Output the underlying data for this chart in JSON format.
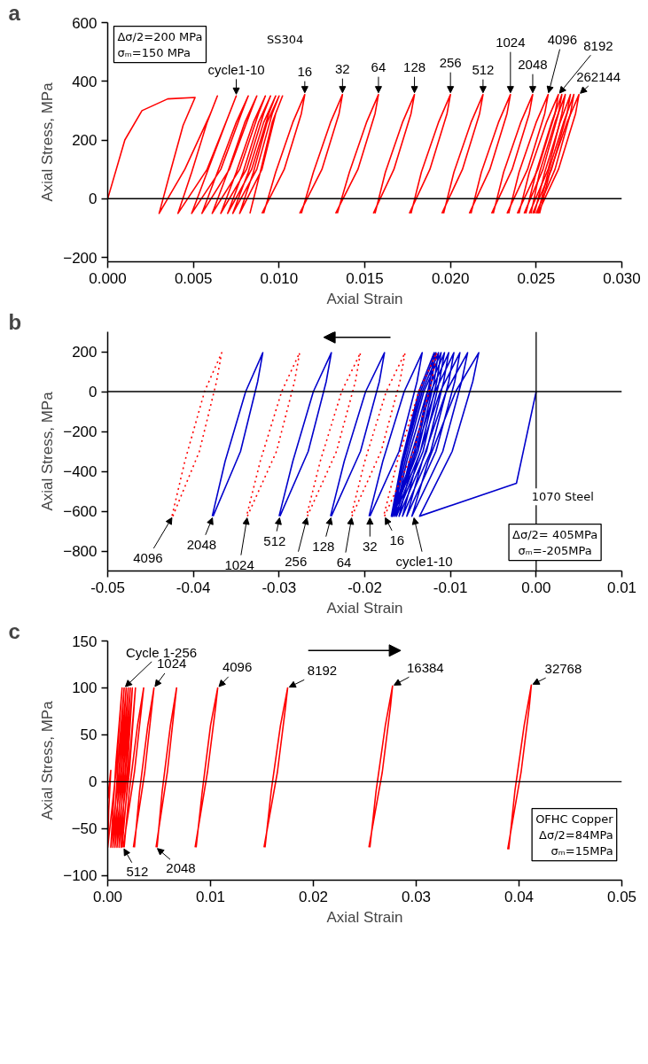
{
  "chart_data": [
    {
      "type": "line",
      "title": "a",
      "xlabel": "Axial Strain",
      "ylabel": "Axial Stress, MPa",
      "xlim": [
        0,
        0.03
      ],
      "ylim": [
        -215,
        600
      ],
      "xticks": [
        {
          "value": 0,
          "label": "0.000"
        },
        {
          "value": 0.005,
          "label": "0.005"
        },
        {
          "value": 0.01,
          "label": "0.010"
        },
        {
          "value": 0.015,
          "label": "0.015"
        },
        {
          "value": 0.02,
          "label": "0.020"
        },
        {
          "value": 0.025,
          "label": "0.025"
        },
        {
          "value": 0.03,
          "label": "0.030"
        }
      ],
      "yticks": [
        -200,
        0,
        200,
        400,
        600
      ],
      "ref_lines": [
        {
          "axis": "y",
          "value": 0,
          "color": "#000000"
        }
      ],
      "series": [
        {
          "color": "#ff0000",
          "line_style": "solid",
          "x": [
            0,
            0.001,
            0.002,
            0.0035,
            0.0051,
            0.0044,
            0.0036,
            0.003,
            0.0045,
            0.006,
            0.0064,
            0.0058,
            0.0049,
            0.0041,
            0.0058,
            0.0071,
            0.0075,
            0.0069,
            0.0058,
            0.0049,
            0.0066,
            0.0078,
            0.0082,
            0.0075,
            0.0064,
            0.0055,
            0.0071,
            0.0083,
            0.0087,
            0.008,
            0.007,
            0.0061,
            0.0077,
            0.0088,
            0.0092,
            0.0085,
            0.0075,
            0.0066,
            0.0081,
            0.0091,
            0.0095,
            0.0088,
            0.0079,
            0.007,
            0.0084,
            0.0094,
            0.0098,
            0.0091,
            0.0082,
            0.0073,
            0.0087,
            0.0096,
            0.01,
            0.0093,
            0.0085,
            0.0077,
            0.009,
            0.0098,
            0.0102,
            0.0096,
            0.0089,
            0.0083
          ],
          "values": [
            0,
            200,
            300,
            340,
            345,
            250,
            80,
            -50,
            100,
            290,
            350,
            260,
            90,
            -50,
            100,
            290,
            350,
            260,
            90,
            -50,
            100,
            290,
            350,
            260,
            90,
            -50,
            100,
            290,
            350,
            260,
            90,
            -50,
            100,
            290,
            350,
            260,
            90,
            -50,
            100,
            290,
            350,
            260,
            90,
            -50,
            100,
            290,
            350,
            260,
            90,
            -50,
            100,
            290,
            350,
            260,
            90,
            -50,
            100,
            290,
            350,
            260,
            90,
            -50
          ]
        },
        {
          "color": "#ff0000",
          "line_style": "solid",
          "x": [
            0.009,
            0.0103,
            0.0113,
            0.0115,
            0.0108,
            0.0098,
            0.0091
          ],
          "values": [
            -50,
            100,
            290,
            355,
            260,
            90,
            -50
          ]
        },
        {
          "color": "#ff0000",
          "line_style": "solid",
          "x": [
            0.0112,
            0.0125,
            0.0135,
            0.0137,
            0.013,
            0.012,
            0.0113
          ],
          "values": [
            -50,
            100,
            290,
            355,
            260,
            90,
            -50
          ]
        },
        {
          "color": "#ff0000",
          "line_style": "solid",
          "x": [
            0.0133,
            0.0146,
            0.0156,
            0.0158,
            0.0151,
            0.0141,
            0.0134
          ],
          "values": [
            -50,
            100,
            290,
            355,
            260,
            90,
            -50
          ]
        },
        {
          "color": "#ff0000",
          "line_style": "solid",
          "x": [
            0.0155,
            0.0167,
            0.0177,
            0.0179,
            0.0172,
            0.0162,
            0.0156
          ],
          "values": [
            -50,
            100,
            290,
            355,
            260,
            90,
            -50
          ]
        },
        {
          "color": "#ff0000",
          "line_style": "solid",
          "x": [
            0.0176,
            0.0188,
            0.0198,
            0.02,
            0.0193,
            0.0183,
            0.0177
          ],
          "values": [
            -50,
            100,
            290,
            355,
            260,
            90,
            -50
          ]
        },
        {
          "color": "#ff0000",
          "line_style": "solid",
          "x": [
            0.0195,
            0.0207,
            0.0217,
            0.0219,
            0.0212,
            0.0202,
            0.0196
          ],
          "values": [
            -50,
            100,
            290,
            355,
            260,
            90,
            -50
          ]
        },
        {
          "color": "#ff0000",
          "line_style": "solid",
          "x": [
            0.0211,
            0.0223,
            0.0233,
            0.0235,
            0.0228,
            0.0218,
            0.0212
          ],
          "values": [
            -50,
            100,
            290,
            355,
            260,
            90,
            -50
          ]
        },
        {
          "color": "#ff0000",
          "line_style": "solid",
          "x": [
            0.0224,
            0.0236,
            0.0246,
            0.0248,
            0.0241,
            0.0231,
            0.0225
          ],
          "values": [
            -50,
            100,
            290,
            355,
            260,
            90,
            -50
          ]
        },
        {
          "color": "#ff0000",
          "line_style": "solid",
          "x": [
            0.0233,
            0.0245,
            0.0255,
            0.0257,
            0.025,
            0.024,
            0.0234
          ],
          "values": [
            -50,
            100,
            290,
            355,
            260,
            90,
            -50
          ]
        },
        {
          "color": "#ff0000",
          "line_style": "solid",
          "x": [
            0.0239,
            0.0251,
            0.0261,
            0.0263,
            0.0256,
            0.0246,
            0.024
          ],
          "values": [
            -50,
            100,
            290,
            355,
            260,
            90,
            -50
          ]
        },
        {
          "color": "#ff0000",
          "line_style": "solid",
          "x": [
            0.0243,
            0.0254,
            0.0263,
            0.0265,
            0.0259,
            0.025,
            0.0244
          ],
          "values": [
            -50,
            100,
            290,
            355,
            260,
            90,
            -50
          ]
        },
        {
          "color": "#ff0000",
          "line_style": "solid",
          "x": [
            0.0246,
            0.0257,
            0.0265,
            0.0267,
            0.0261,
            0.0252,
            0.0247
          ],
          "values": [
            -50,
            100,
            290,
            355,
            260,
            90,
            -50
          ]
        },
        {
          "color": "#ff0000",
          "line_style": "solid",
          "x": [
            0.0248,
            0.0259,
            0.0268,
            0.027,
            0.0264,
            0.0255,
            0.0249
          ],
          "values": [
            -50,
            100,
            290,
            355,
            260,
            90,
            -50
          ]
        },
        {
          "color": "#ff0000",
          "line_style": "solid",
          "x": [
            0.025,
            0.0261,
            0.027,
            0.0272,
            0.0266,
            0.0257,
            0.0251
          ],
          "values": [
            -50,
            100,
            290,
            355,
            260,
            90,
            -50
          ]
        },
        {
          "color": "#ff0000",
          "line_style": "solid",
          "x": [
            0.0251,
            0.0263,
            0.0273,
            0.0275,
            0.0268,
            0.0258,
            0.0252
          ],
          "values": [
            -50,
            100,
            290,
            355,
            260,
            90,
            -50
          ]
        }
      ],
      "annotations": [
        {
          "text": "cycle1-10",
          "x": 0.0075,
          "y": 350
        },
        {
          "text": "16",
          "x": 0.0115,
          "y": 355
        },
        {
          "text": "32",
          "x": 0.0137,
          "y": 355
        },
        {
          "text": "64",
          "x": 0.0158,
          "y": 355
        },
        {
          "text": "128",
          "x": 0.0179,
          "y": 355
        },
        {
          "text": "256",
          "x": 0.02,
          "y": 355
        },
        {
          "text": "512",
          "x": 0.0219,
          "y": 355
        },
        {
          "text": "1024",
          "x": 0.0235,
          "y": 355
        },
        {
          "text": "2048",
          "x": 0.0248,
          "y": 355
        },
        {
          "text": "4096",
          "x": 0.0257,
          "y": 355
        },
        {
          "text": "8192",
          "x": 0.0263,
          "y": 355
        },
        {
          "text": "262144",
          "x": 0.0275,
          "y": 355
        },
        "Δσ/2=200 MPa\nσₘ=150 MPa",
        "SS304"
      ]
    },
    {
      "type": "line",
      "title": "b",
      "xlabel": "Axial Strain",
      "ylabel": "Axial Stress, MPa",
      "xlim": [
        -0.05,
        0.01
      ],
      "ylim": [
        -900,
        300
      ],
      "xticks": [
        {
          "value": -0.05,
          "label": "-0.05"
        },
        {
          "value": -0.04,
          "label": "-0.04"
        },
        {
          "value": -0.03,
          "label": "-0.03"
        },
        {
          "value": -0.02,
          "label": "-0.02"
        },
        {
          "value": -0.01,
          "label": "-0.01"
        },
        {
          "value": 0,
          "label": "0.00"
        },
        {
          "value": 0.01,
          "label": "0.01"
        }
      ],
      "yticks": [
        -800,
        -600,
        -400,
        -200,
        0,
        200
      ],
      "ref_lines": [
        {
          "axis": "y",
          "value": 0,
          "color": "#000000"
        },
        {
          "axis": "x",
          "value": 0,
          "color": "#000000"
        }
      ],
      "series": [
        {
          "color": "#0000cc",
          "line_style": "solid",
          "x": [
            0,
            -0.0023,
            -0.0136,
            -0.0098,
            -0.0074,
            -0.0067,
            -0.0094,
            -0.0126,
            -0.0145,
            -0.0109,
            -0.0087,
            -0.008,
            -0.0105,
            -0.0133,
            -0.0151,
            -0.0117,
            -0.0095,
            -0.0089,
            -0.0112,
            -0.0139,
            -0.0156,
            -0.0123,
            -0.0102,
            -0.0096,
            -0.0118,
            -0.0144,
            -0.016,
            -0.0128,
            -0.0108,
            -0.0102,
            -0.0123,
            -0.0148,
            -0.0163,
            -0.0132,
            -0.0113,
            -0.0107,
            -0.0127,
            -0.0151,
            -0.0165,
            -0.0135,
            -0.0116,
            -0.0111,
            -0.0131,
            -0.0153,
            -0.0167,
            -0.0138,
            -0.0119,
            -0.0114,
            -0.0133,
            -0.0155,
            -0.0168,
            -0.014,
            -0.0122,
            -0.0117,
            -0.0135,
            -0.0156,
            -0.0169,
            -0.0142,
            -0.0124,
            -0.0119,
            -0.0137,
            -0.0157,
            -0.0169
          ],
          "values": [
            0,
            -460,
            -625,
            -300,
            50,
            195,
            0,
            -350,
            -625,
            -300,
            50,
            195,
            0,
            -350,
            -625,
            -300,
            50,
            195,
            0,
            -350,
            -625,
            -300,
            50,
            195,
            0,
            -350,
            -625,
            -300,
            50,
            195,
            0,
            -350,
            -625,
            -300,
            50,
            195,
            0,
            -350,
            -625,
            -300,
            50,
            195,
            0,
            -350,
            -625,
            -300,
            50,
            195,
            0,
            -350,
            -625,
            -300,
            50,
            195,
            0,
            -350,
            -625,
            -300,
            50,
            195,
            0,
            -350,
            -625
          ]
        },
        {
          "color": "#0000cc",
          "line_style": "solid",
          "x": [
            -0.0377,
            -0.0345,
            -0.0325,
            -0.0319,
            -0.0339,
            -0.0363,
            -0.0378
          ],
          "values": [
            -625,
            -300,
            50,
            195,
            0,
            -350,
            -625
          ]
        },
        {
          "color": "#0000cc",
          "line_style": "solid",
          "x": [
            -0.0299,
            -0.0266,
            -0.0245,
            -0.0239,
            -0.026,
            -0.0284,
            -0.03
          ],
          "values": [
            -625,
            -300,
            50,
            195,
            0,
            -350,
            -625
          ]
        },
        {
          "color": "#0000cc",
          "line_style": "solid",
          "x": [
            -0.0239,
            -0.0205,
            -0.0183,
            -0.0177,
            -0.0199,
            -0.0224,
            -0.024
          ],
          "values": [
            -625,
            -300,
            50,
            195,
            0,
            -350,
            -625
          ]
        },
        {
          "color": "#0000cc",
          "line_style": "solid",
          "x": [
            -0.0194,
            -0.016,
            -0.0139,
            -0.0133,
            -0.0154,
            -0.0179,
            -0.0195
          ],
          "values": [
            -625,
            -300,
            50,
            195,
            0,
            -350,
            -625
          ]
        },
        {
          "color": "#ff0000",
          "line_style": "dotted",
          "x": [
            -0.0424,
            -0.0393,
            -0.0373,
            -0.0367,
            -0.0387,
            -0.041,
            -0.0425
          ],
          "values": [
            -625,
            -300,
            50,
            195,
            0,
            -350,
            -625
          ]
        },
        {
          "color": "#ff0000",
          "line_style": "dotted",
          "x": [
            -0.0337,
            -0.0303,
            -0.0282,
            -0.0276,
            -0.0297,
            -0.0322,
            -0.0338
          ],
          "values": [
            -625,
            -300,
            50,
            195,
            0,
            -350,
            -625
          ]
        },
        {
          "color": "#ff0000",
          "line_style": "dotted",
          "x": [
            -0.0267,
            -0.0233,
            -0.0211,
            -0.0205,
            -0.0227,
            -0.0252,
            -0.0268
          ],
          "values": [
            -625,
            -300,
            50,
            195,
            0,
            -350,
            -625
          ]
        },
        {
          "color": "#ff0000",
          "line_style": "dotted",
          "x": [
            -0.0215,
            -0.0181,
            -0.0159,
            -0.0153,
            -0.0175,
            -0.02,
            -0.0216
          ],
          "values": [
            -625,
            -300,
            50,
            195,
            0,
            -350,
            -625
          ]
        },
        {
          "color": "#ff0000",
          "line_style": "dotted",
          "x": [
            -0.0177,
            -0.0143,
            -0.0122,
            -0.0116,
            -0.0137,
            -0.0162,
            -0.0178
          ],
          "values": [
            -625,
            -300,
            50,
            195,
            0,
            -350,
            -625
          ]
        }
      ],
      "annotations": [
        {
          "text": "4096",
          "x": -0.0424,
          "y": -625
        },
        {
          "text": "2048",
          "x": -0.0377,
          "y": -625
        },
        {
          "text": "1024",
          "x": -0.0337,
          "y": -625
        },
        {
          "text": "512",
          "x": -0.0299,
          "y": -625
        },
        {
          "text": "256",
          "x": -0.0267,
          "y": -625
        },
        {
          "text": "128",
          "x": -0.0239,
          "y": -625
        },
        {
          "text": "64",
          "x": -0.0215,
          "y": -625
        },
        {
          "text": "32",
          "x": -0.0194,
          "y": -625
        },
        {
          "text": "16",
          "x": -0.0177,
          "y": -625
        },
        {
          "text": "cycle1-10",
          "x": -0.0143,
          "y": -625
        },
        "1070 Steel",
        "Δσ/2= 405MPa\nσₘ=-205MPa"
      ]
    },
    {
      "type": "line",
      "title": "c",
      "xlabel": "Axial Strain",
      "ylabel": "Axial Stress, MPa",
      "xlim": [
        0,
        0.05
      ],
      "ylim": [
        -105,
        150
      ],
      "xticks": [
        {
          "value": 0,
          "label": "0.00"
        },
        {
          "value": 0.01,
          "label": "0.01"
        },
        {
          "value": 0.02,
          "label": "0.02"
        },
        {
          "value": 0.03,
          "label": "0.03"
        },
        {
          "value": 0.04,
          "label": "0.04"
        },
        {
          "value": 0.05,
          "label": "0.05"
        }
      ],
      "yticks": [
        -100,
        -50,
        0,
        50,
        100,
        150
      ],
      "ref_lines": [
        {
          "axis": "y",
          "value": 0,
          "color": "#000000"
        }
      ],
      "series": [
        {
          "color": "#ff0000",
          "line_style": "solid",
          "x": [
            0,
            0.0003,
            0.0001,
            0,
            0.0008,
            0.0014,
            0.0008,
            0.0003,
            0.0011,
            0.0016,
            0.001,
            0.0005,
            0.0013,
            0.0018,
            0.0012,
            0.0007,
            0.0015,
            0.002,
            0.0014,
            0.0009,
            0.0017,
            0.0022,
            0.0016,
            0.0011,
            0.0019,
            0.0024,
            0.0018,
            0.0013,
            0.0021,
            0.0027,
            0.0021,
            0.0014
          ],
          "values": [
            -18,
            12,
            -30,
            -70,
            10,
            100,
            20,
            -70,
            10,
            100,
            20,
            -70,
            10,
            100,
            20,
            -70,
            10,
            100,
            20,
            -70,
            10,
            100,
            20,
            -70,
            10,
            100,
            20,
            -70,
            10,
            100,
            20,
            -70
          ]
        },
        {
          "color": "#ff0000",
          "line_style": "solid",
          "x": [
            0.0015,
            0.0026,
            0.0033,
            0.0035,
            0.0029,
            0.0021,
            0.0016
          ],
          "values": [
            -70,
            10,
            80,
            100,
            60,
            -10,
            -70
          ]
        },
        {
          "color": "#ff0000",
          "line_style": "solid",
          "x": [
            0.0025,
            0.0036,
            0.0043,
            0.0045,
            0.0039,
            0.0031,
            0.0026
          ],
          "values": [
            -70,
            10,
            80,
            100,
            60,
            -10,
            -70
          ]
        },
        {
          "color": "#ff0000",
          "line_style": "solid",
          "x": [
            0.0047,
            0.0058,
            0.0065,
            0.0067,
            0.0061,
            0.0053,
            0.0048
          ],
          "values": [
            -70,
            10,
            80,
            100,
            60,
            -10,
            -70
          ]
        },
        {
          "color": "#ff0000",
          "line_style": "solid",
          "x": [
            0.0085,
            0.0097,
            0.0105,
            0.0107,
            0.01,
            0.0092,
            0.0086
          ],
          "values": [
            -70,
            10,
            80,
            100,
            60,
            -10,
            -70
          ]
        },
        {
          "color": "#ff0000",
          "line_style": "solid",
          "x": [
            0.0152,
            0.0165,
            0.0173,
            0.0175,
            0.0168,
            0.0159,
            0.0153
          ],
          "values": [
            -70,
            10,
            80,
            100,
            60,
            -10,
            -70
          ]
        },
        {
          "color": "#ff0000",
          "line_style": "solid",
          "x": [
            0.0254,
            0.0267,
            0.0275,
            0.0277,
            0.027,
            0.0261,
            0.0255
          ],
          "values": [
            -70,
            10,
            80,
            102,
            60,
            -10,
            -70
          ]
        },
        {
          "color": "#ff0000",
          "line_style": "solid",
          "x": [
            0.0389,
            0.0402,
            0.041,
            0.0412,
            0.0405,
            0.0396,
            0.039
          ],
          "values": [
            -72,
            10,
            80,
            103,
            60,
            -10,
            -72
          ]
        }
      ],
      "annotations": [
        {
          "text": "Cycle 1-256",
          "x": 0.0016,
          "y": 100
        },
        {
          "text": "1024",
          "x": 0.0045,
          "y": 100
        },
        {
          "text": "4096",
          "x": 0.0107,
          "y": 100
        },
        {
          "text": "8192",
          "x": 0.0175,
          "y": 100
        },
        {
          "text": "16384",
          "x": 0.0277,
          "y": 102
        },
        {
          "text": "32768",
          "x": 0.0412,
          "y": 103
        },
        {
          "text": "512",
          "x": 0.0015,
          "y": -70
        },
        {
          "text": "2048",
          "x": 0.0047,
          "y": -70
        },
        "OFHC Copper\nΔσ/2=84MPa\nσₘ=15MPa"
      ]
    }
  ]
}
